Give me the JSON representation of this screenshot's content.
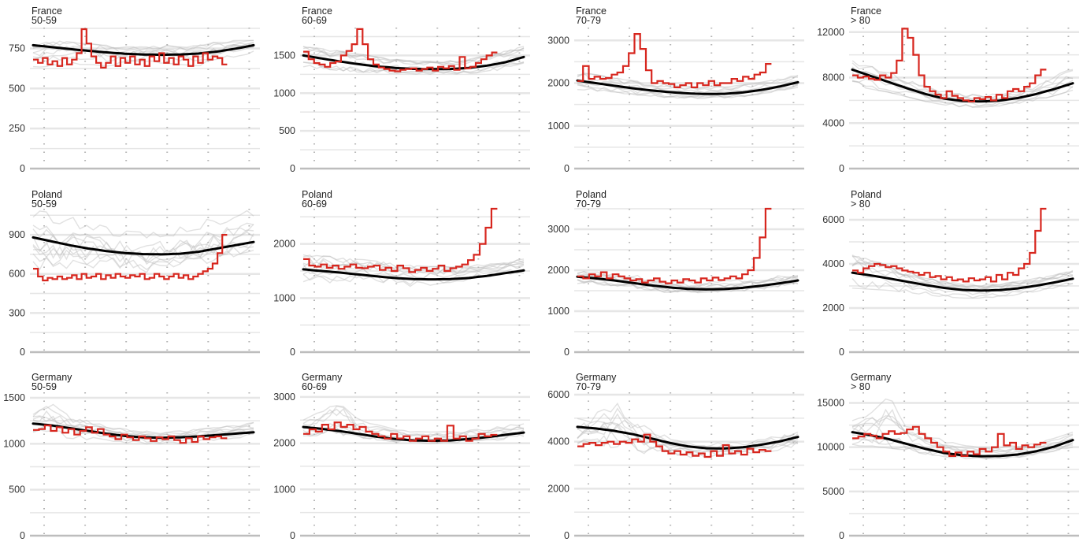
{
  "chart_data": [
    {
      "type": "line",
      "country": "France",
      "age_group": "50-59",
      "yticks": [
        0,
        250,
        500,
        750
      ],
      "ylim": [
        0,
        880
      ],
      "current_year": [
        680,
        660,
        690,
        650,
        670,
        640,
        690,
        650,
        680,
        720,
        870,
        780,
        700,
        660,
        630,
        660,
        700,
        640,
        690,
        660,
        700,
        650,
        680,
        640,
        700,
        670,
        720,
        660,
        690,
        650,
        700,
        680,
        640,
        700,
        660,
        720,
        680,
        700,
        690,
        650
      ],
      "trend": [
        770,
        758,
        746,
        735,
        725,
        717,
        712,
        710,
        712,
        718,
        730,
        748,
        770
      ],
      "past_years_lo": [
        630,
        640,
        650,
        650,
        640,
        650,
        650,
        660,
        650,
        640,
        660,
        700,
        720
      ],
      "past_years_hi": [
        760,
        800,
        790,
        780,
        770,
        760,
        760,
        770,
        760,
        770,
        790,
        800,
        800
      ]
    },
    {
      "type": "line",
      "country": "France",
      "age_group": "60-69",
      "yticks": [
        0,
        500,
        1000,
        1500
      ],
      "ylim": [
        0,
        1870
      ],
      "current_year": [
        1550,
        1450,
        1400,
        1380,
        1350,
        1400,
        1420,
        1500,
        1560,
        1650,
        1850,
        1650,
        1450,
        1380,
        1340,
        1320,
        1300,
        1290,
        1310,
        1320,
        1330,
        1300,
        1320,
        1340,
        1300,
        1350,
        1330,
        1360,
        1310,
        1480,
        1330,
        1350,
        1400,
        1450,
        1500,
        1540
      ],
      "trend": [
        1500,
        1460,
        1420,
        1385,
        1355,
        1335,
        1322,
        1318,
        1320,
        1335,
        1365,
        1410,
        1480
      ],
      "past_years_lo": [
        1350,
        1320,
        1300,
        1280,
        1270,
        1260,
        1250,
        1250,
        1250,
        1260,
        1280,
        1320,
        1400
      ],
      "past_years_hi": [
        1620,
        1590,
        1560,
        1520,
        1480,
        1450,
        1430,
        1420,
        1430,
        1450,
        1500,
        1560,
        1620
      ]
    },
    {
      "type": "line",
      "country": "France",
      "age_group": "70-79",
      "yticks": [
        0,
        1000,
        2000,
        3000
      ],
      "ylim": [
        0,
        3300
      ],
      "current_year": [
        2050,
        2400,
        2100,
        2150,
        2100,
        2120,
        2200,
        2250,
        2400,
        2700,
        3150,
        2800,
        2300,
        2000,
        2050,
        2000,
        1980,
        1900,
        1950,
        2000,
        1900,
        2000,
        1950,
        2050,
        1950,
        2000,
        2000,
        2100,
        2050,
        2150,
        2100,
        2200,
        2250,
        2450
      ],
      "trend": [
        2060,
        2000,
        1940,
        1880,
        1830,
        1790,
        1760,
        1745,
        1750,
        1780,
        1840,
        1920,
        2020
      ],
      "past_years_lo": [
        1850,
        1820,
        1780,
        1730,
        1690,
        1660,
        1640,
        1640,
        1650,
        1680,
        1740,
        1820,
        1900
      ],
      "past_years_hi": [
        2250,
        2200,
        2130,
        2060,
        2000,
        1960,
        1930,
        1920,
        1930,
        1960,
        2020,
        2100,
        2200
      ]
    },
    {
      "type": "line",
      "country": "France",
      "age_group": "> 80",
      "yticks": [
        0,
        4000,
        8000,
        12000
      ],
      "ylim": [
        0,
        12400
      ],
      "current_year": [
        8200,
        8000,
        8100,
        7900,
        7800,
        8200,
        8000,
        8400,
        9500,
        12300,
        11500,
        10000,
        8200,
        7200,
        6800,
        6500,
        6200,
        6800,
        6400,
        6200,
        6000,
        5900,
        6200,
        6100,
        6300,
        6000,
        6500,
        6200,
        6800,
        7000,
        6800,
        7200,
        7500,
        8200,
        8700
      ],
      "trend": [
        8700,
        8150,
        7600,
        7050,
        6550,
        6150,
        5950,
        5900,
        5980,
        6200,
        6550,
        7000,
        7500
      ],
      "past_years_lo": [
        7300,
        7000,
        6700,
        6300,
        5900,
        5600,
        5400,
        5400,
        5500,
        5700,
        6000,
        6400,
        6900
      ],
      "past_years_hi": [
        9500,
        9000,
        8500,
        7900,
        7300,
        6800,
        6600,
        6500,
        6600,
        6900,
        7400,
        8100,
        9000
      ]
    },
    {
      "type": "line",
      "country": "Poland",
      "age_group": "50-59",
      "yticks": [
        0,
        300,
        600,
        900
      ],
      "ylim": [
        0,
        1100
      ],
      "current_year": [
        640,
        580,
        550,
        570,
        560,
        580,
        560,
        570,
        590,
        560,
        600,
        570,
        580,
        600,
        560,
        590,
        570,
        600,
        580,
        570,
        590,
        580,
        600,
        560,
        570,
        600,
        580,
        560,
        580,
        600,
        570,
        590,
        560,
        580,
        600,
        620,
        640,
        680,
        760,
        900
      ],
      "trend": [
        880,
        850,
        820,
        795,
        775,
        760,
        752,
        750,
        755,
        770,
        795,
        820,
        845
      ],
      "past_years_lo": [
        620,
        630,
        640,
        650,
        640,
        620,
        610,
        620,
        640,
        660,
        690,
        720,
        760
      ],
      "past_years_hi": [
        1090,
        1070,
        1040,
        1000,
        960,
        930,
        920,
        930,
        960,
        1000,
        1040,
        1070,
        1100
      ]
    },
    {
      "type": "line",
      "country": "Poland",
      "age_group": "60-69",
      "yticks": [
        0,
        1000,
        2000
      ],
      "ylim": [
        0,
        2650
      ],
      "current_year": [
        1720,
        1600,
        1580,
        1620,
        1560,
        1600,
        1540,
        1580,
        1620,
        1560,
        1550,
        1580,
        1600,
        1520,
        1560,
        1500,
        1600,
        1550,
        1480,
        1520,
        1560,
        1500,
        1540,
        1600,
        1500,
        1550,
        1580,
        1620,
        1700,
        1800,
        2000,
        2300,
        2650
      ],
      "trend": [
        1530,
        1500,
        1470,
        1435,
        1400,
        1370,
        1350,
        1345,
        1350,
        1370,
        1410,
        1460,
        1510
      ],
      "past_years_lo": [
        1200,
        1220,
        1240,
        1260,
        1240,
        1200,
        1180,
        1200,
        1240,
        1300,
        1360,
        1400,
        1420
      ],
      "past_years_hi": [
        1800,
        1780,
        1760,
        1720,
        1680,
        1640,
        1600,
        1580,
        1580,
        1600,
        1640,
        1680,
        1720
      ]
    },
    {
      "type": "line",
      "country": "Poland",
      "age_group": "70-79",
      "yticks": [
        0,
        1000,
        2000,
        3000
      ],
      "ylim": [
        0,
        3500
      ],
      "current_year": [
        1850,
        1800,
        1900,
        1850,
        1950,
        1800,
        1900,
        1850,
        1800,
        1750,
        1780,
        1700,
        1750,
        1800,
        1720,
        1680,
        1750,
        1700,
        1780,
        1750,
        1700,
        1800,
        1750,
        1820,
        1760,
        1800,
        1850,
        1800,
        1900,
        2000,
        2300,
        2800,
        3500
      ],
      "trend": [
        1840,
        1800,
        1750,
        1690,
        1630,
        1580,
        1545,
        1530,
        1540,
        1570,
        1620,
        1680,
        1750
      ],
      "past_years_lo": [
        1650,
        1620,
        1580,
        1520,
        1470,
        1430,
        1410,
        1410,
        1430,
        1460,
        1510,
        1570,
        1630
      ],
      "past_years_hi": [
        2050,
        2000,
        1950,
        1890,
        1830,
        1780,
        1750,
        1740,
        1750,
        1780,
        1830,
        1890,
        1960
      ]
    },
    {
      "type": "line",
      "country": "Poland",
      "age_group": "> 80",
      "yticks": [
        0,
        2000,
        4000,
        6000
      ],
      "ylim": [
        0,
        6500
      ],
      "current_year": [
        3700,
        3600,
        3800,
        3900,
        4000,
        3950,
        3850,
        3900,
        3800,
        3700,
        3650,
        3600,
        3500,
        3600,
        3400,
        3450,
        3300,
        3400,
        3250,
        3300,
        3200,
        3350,
        3250,
        3300,
        3400,
        3200,
        3500,
        3300,
        3600,
        3500,
        3800,
        4000,
        4500,
        5500,
        6500
      ],
      "trend": [
        3600,
        3480,
        3340,
        3190,
        3040,
        2910,
        2820,
        2790,
        2810,
        2890,
        3010,
        3160,
        3330
      ],
      "past_years_lo": [
        2900,
        2850,
        2800,
        2700,
        2600,
        2500,
        2450,
        2450,
        2500,
        2600,
        2750,
        2900,
        3050
      ],
      "past_years_hi": [
        4400,
        4200,
        3900,
        3650,
        3400,
        3200,
        3100,
        3050,
        3100,
        3200,
        3350,
        3500,
        3700
      ]
    },
    {
      "type": "line",
      "country": "Germany",
      "age_group": "50-59",
      "yticks": [
        0,
        500,
        1000,
        1500
      ],
      "ylim": [
        0,
        1560
      ],
      "current_year": [
        1150,
        1160,
        1200,
        1140,
        1180,
        1120,
        1160,
        1100,
        1140,
        1180,
        1120,
        1160,
        1100,
        1080,
        1050,
        1100,
        1070,
        1040,
        1080,
        1060,
        1030,
        1070,
        1050,
        1080,
        1040,
        1010,
        1060,
        1020,
        1080,
        1050,
        1070,
        1080,
        1060
      ],
      "trend": [
        1220,
        1200,
        1170,
        1140,
        1110,
        1085,
        1070,
        1065,
        1070,
        1080,
        1095,
        1110,
        1125
      ],
      "past_years_lo": [
        1080,
        1070,
        1060,
        1040,
        1020,
        1000,
        990,
        990,
        1000,
        1020,
        1040,
        1060,
        1080
      ],
      "past_years_hi": [
        1350,
        1440,
        1300,
        1250,
        1200,
        1160,
        1140,
        1130,
        1140,
        1160,
        1180,
        1200,
        1230
      ]
    },
    {
      "type": "line",
      "country": "Germany",
      "age_group": "60-69",
      "yticks": [
        0,
        1000,
        2000,
        3000
      ],
      "ylim": [
        0,
        3100
      ],
      "current_year": [
        2200,
        2300,
        2250,
        2400,
        2300,
        2450,
        2350,
        2400,
        2300,
        2350,
        2250,
        2200,
        2150,
        2100,
        2200,
        2100,
        2150,
        2050,
        2100,
        2150,
        2050,
        2100,
        2050,
        2380,
        2100,
        2150,
        2050,
        2100,
        2200,
        2150,
        2180
      ],
      "trend": [
        2350,
        2310,
        2260,
        2200,
        2140,
        2090,
        2060,
        2050,
        2060,
        2090,
        2130,
        2180,
        2230
      ],
      "past_years_lo": [
        2100,
        2090,
        2080,
        2060,
        2030,
        2000,
        1980,
        1980,
        1990,
        2010,
        2040,
        2080,
        2120
      ],
      "past_years_hi": [
        2500,
        2700,
        2950,
        2500,
        2400,
        2300,
        2250,
        2240,
        2250,
        2280,
        2320,
        2380,
        2450
      ]
    },
    {
      "type": "line",
      "country": "Germany",
      "age_group": "70-79",
      "yticks": [
        0,
        2000,
        4000,
        6000
      ],
      "ylim": [
        0,
        6100
      ],
      "current_year": [
        3800,
        3900,
        3950,
        3850,
        3950,
        4000,
        3900,
        4000,
        3950,
        4100,
        4000,
        4300,
        4000,
        3800,
        3600,
        3500,
        3600,
        3450,
        3550,
        3400,
        3500,
        3350,
        3600,
        3400,
        3850,
        3500,
        3600,
        3450,
        3700,
        3550,
        3650,
        3600
      ],
      "trend": [
        4630,
        4560,
        4460,
        4320,
        4140,
        3950,
        3800,
        3720,
        3710,
        3760,
        3870,
        4010,
        4200
      ],
      "past_years_lo": [
        3700,
        3650,
        3600,
        3500,
        3400,
        3350,
        3300,
        3300,
        3350,
        3400,
        3500,
        3600,
        3700
      ],
      "past_years_hi": [
        5000,
        5200,
        5800,
        5000,
        4500,
        4200,
        4000,
        3950,
        3950,
        4000,
        4100,
        4300,
        4500
      ]
    },
    {
      "type": "line",
      "country": "Germany",
      "age_group": "> 80",
      "yticks": [
        0,
        5000,
        10000,
        15000
      ],
      "ylim": [
        0,
        16200
      ],
      "current_year": [
        11000,
        11200,
        11500,
        11300,
        11000,
        11500,
        11800,
        11500,
        11600,
        12000,
        12300,
        11500,
        11000,
        10500,
        10000,
        9500,
        9000,
        9400,
        9000,
        9500,
        9200,
        9800,
        9500,
        10000,
        11500,
        10200,
        10500,
        9800,
        10200,
        10000,
        10300,
        10500
      ],
      "trend": [
        11700,
        11350,
        10900,
        10350,
        9800,
        9350,
        9080,
        8980,
        9000,
        9170,
        9530,
        10070,
        10800
      ],
      "past_years_lo": [
        10200,
        10100,
        9900,
        9600,
        9200,
        8900,
        8700,
        8650,
        8700,
        8850,
        9150,
        9550,
        10000
      ],
      "past_years_hi": [
        13000,
        13800,
        15800,
        12500,
        11500,
        10800,
        10200,
        10000,
        10000,
        10200,
        10500,
        11000,
        11700
      ]
    }
  ],
  "panels": [
    {
      "country": "France",
      "age_group": "50-59",
      "tick_0": "0",
      "tick_1": "250",
      "tick_2": "500",
      "tick_3": "750",
      "tick_4": ""
    },
    {
      "country": "France",
      "age_group": "60-69",
      "tick_0": "0",
      "tick_1": "500",
      "tick_2": "1000",
      "tick_3": "1500",
      "tick_4": ""
    },
    {
      "country": "France",
      "age_group": "70-79",
      "tick_0": "0",
      "tick_1": "1000",
      "tick_2": "2000",
      "tick_3": "3000",
      "tick_4": ""
    },
    {
      "country": "France",
      "age_group": "> 80",
      "tick_0": "0",
      "tick_1": "4000",
      "tick_2": "8000",
      "tick_3": "12000",
      "tick_4": ""
    },
    {
      "country": "Poland",
      "age_group": "50-59",
      "tick_0": "0",
      "tick_1": "300",
      "tick_2": "600",
      "tick_3": "900",
      "tick_4": ""
    },
    {
      "country": "Poland",
      "age_group": "60-69",
      "tick_0": "0",
      "tick_1": "1000",
      "tick_2": "2000",
      "tick_3": "",
      "tick_4": ""
    },
    {
      "country": "Poland",
      "age_group": "70-79",
      "tick_0": "0",
      "tick_1": "1000",
      "tick_2": "2000",
      "tick_3": "3000",
      "tick_4": ""
    },
    {
      "country": "Poland",
      "age_group": "> 80",
      "tick_0": "0",
      "tick_1": "2000",
      "tick_2": "4000",
      "tick_3": "6000",
      "tick_4": ""
    },
    {
      "country": "Germany",
      "age_group": "50-59",
      "tick_0": "0",
      "tick_1": "500",
      "tick_2": "1000",
      "tick_3": "1500",
      "tick_4": ""
    },
    {
      "country": "Germany",
      "age_group": "60-69",
      "tick_0": "0",
      "tick_1": "1000",
      "tick_2": "2000",
      "tick_3": "3000",
      "tick_4": ""
    },
    {
      "country": "Germany",
      "age_group": "70-79",
      "tick_0": "0",
      "tick_1": "2000",
      "tick_2": "4000",
      "tick_3": "6000",
      "tick_4": ""
    },
    {
      "country": "Germany",
      "age_group": "> 80",
      "tick_0": "0",
      "tick_1": "5000",
      "tick_2": "10000",
      "tick_3": "15000",
      "tick_4": ""
    }
  ],
  "colors": {
    "current_year": "#d7261e",
    "trend": "#000000",
    "past_years": "#bdbdbd",
    "gridline": "#e6e6e6",
    "baseline": "#bdbdbd",
    "vertical_dots": "#b5b5b5"
  }
}
